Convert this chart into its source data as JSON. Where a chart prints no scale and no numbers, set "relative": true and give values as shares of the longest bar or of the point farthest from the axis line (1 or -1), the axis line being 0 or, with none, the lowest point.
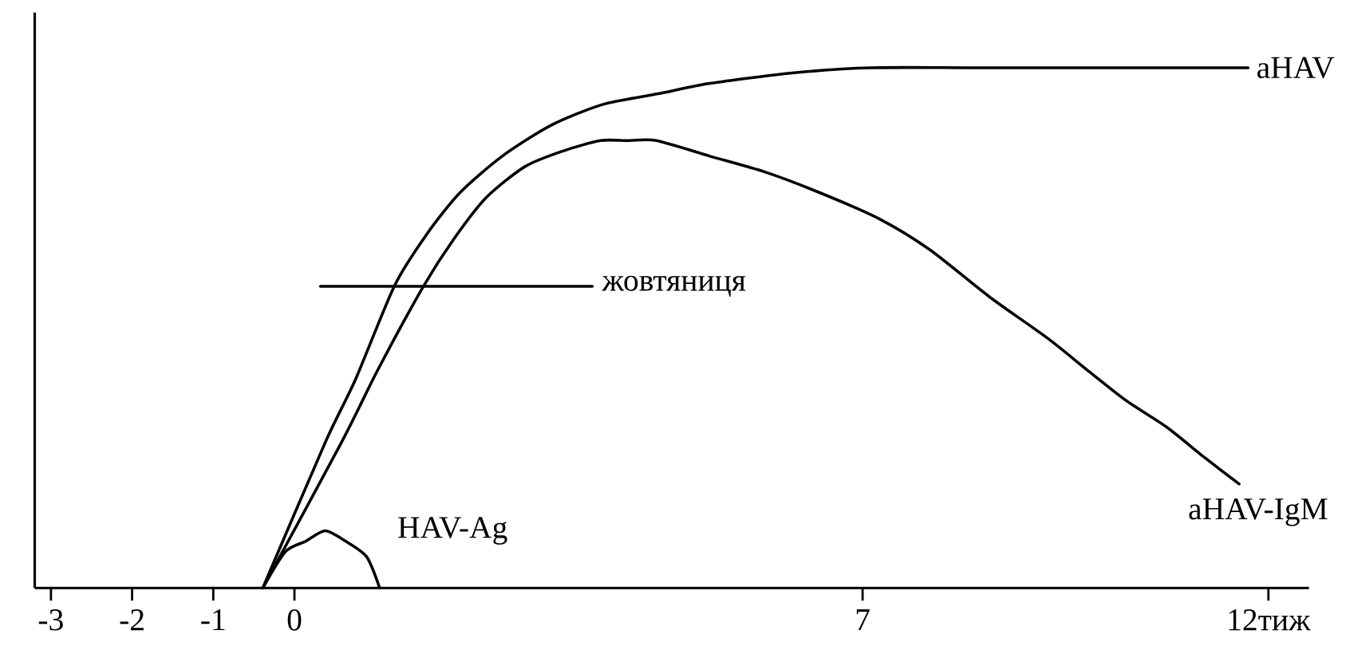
{
  "chart_data": {
    "type": "line",
    "relative": true,
    "marker": "none",
    "xlim": [
      -3.2,
      12.5
    ],
    "xticks": [
      -3,
      -2,
      -1,
      0,
      7,
      {
        "value": 12,
        "label": "12тиж"
      }
    ],
    "series": [
      {
        "name": "aHAV",
        "color": "#000000",
        "x": [
          -0.39,
          0.38,
          0.75,
          1.23,
          1.63,
          2.04,
          2.56,
          3.17,
          3.81,
          4.48,
          5.12,
          6.13,
          7.1,
          8.56,
          11.75
        ],
        "values": [
          0,
          0.28,
          0.4,
          0.58,
          0.68,
          0.76,
          0.83,
          0.89,
          0.93,
          0.95,
          0.97,
          0.99,
          1,
          1,
          1
        ]
      },
      {
        "name": "aHAV-IgM",
        "color": "#000000",
        "x": [
          -0.39,
          0.58,
          1.03,
          1.59,
          1.96,
          2.36,
          2.84,
          3.31,
          3.77,
          4.11,
          4.46,
          5.12,
          5.79,
          6.47,
          7.2,
          7.83,
          8.56,
          9.28,
          9.76,
          10.25,
          10.74,
          11.22,
          11.64
        ],
        "values": [
          0,
          0.28,
          0.42,
          0.58,
          0.67,
          0.75,
          0.81,
          0.84,
          0.86,
          0.86,
          0.86,
          0.83,
          0.8,
          0.76,
          0.71,
          0.65,
          0.56,
          0.48,
          0.42,
          0.36,
          0.31,
          0.25,
          0.2
        ]
      },
      {
        "name": "HAV-Ag",
        "color": "#000000",
        "x": [
          -0.39,
          -0.11,
          0.14,
          0.38,
          0.63,
          0.89,
          1.05
        ],
        "values": [
          0,
          0.07,
          0.09,
          0.11,
          0.09,
          0.06,
          0
        ]
      },
      {
        "name": "жовтяниця",
        "color": "#000000",
        "x": [
          0.32,
          3.67
        ],
        "values": [
          0.58,
          0.58
        ]
      }
    ]
  }
}
